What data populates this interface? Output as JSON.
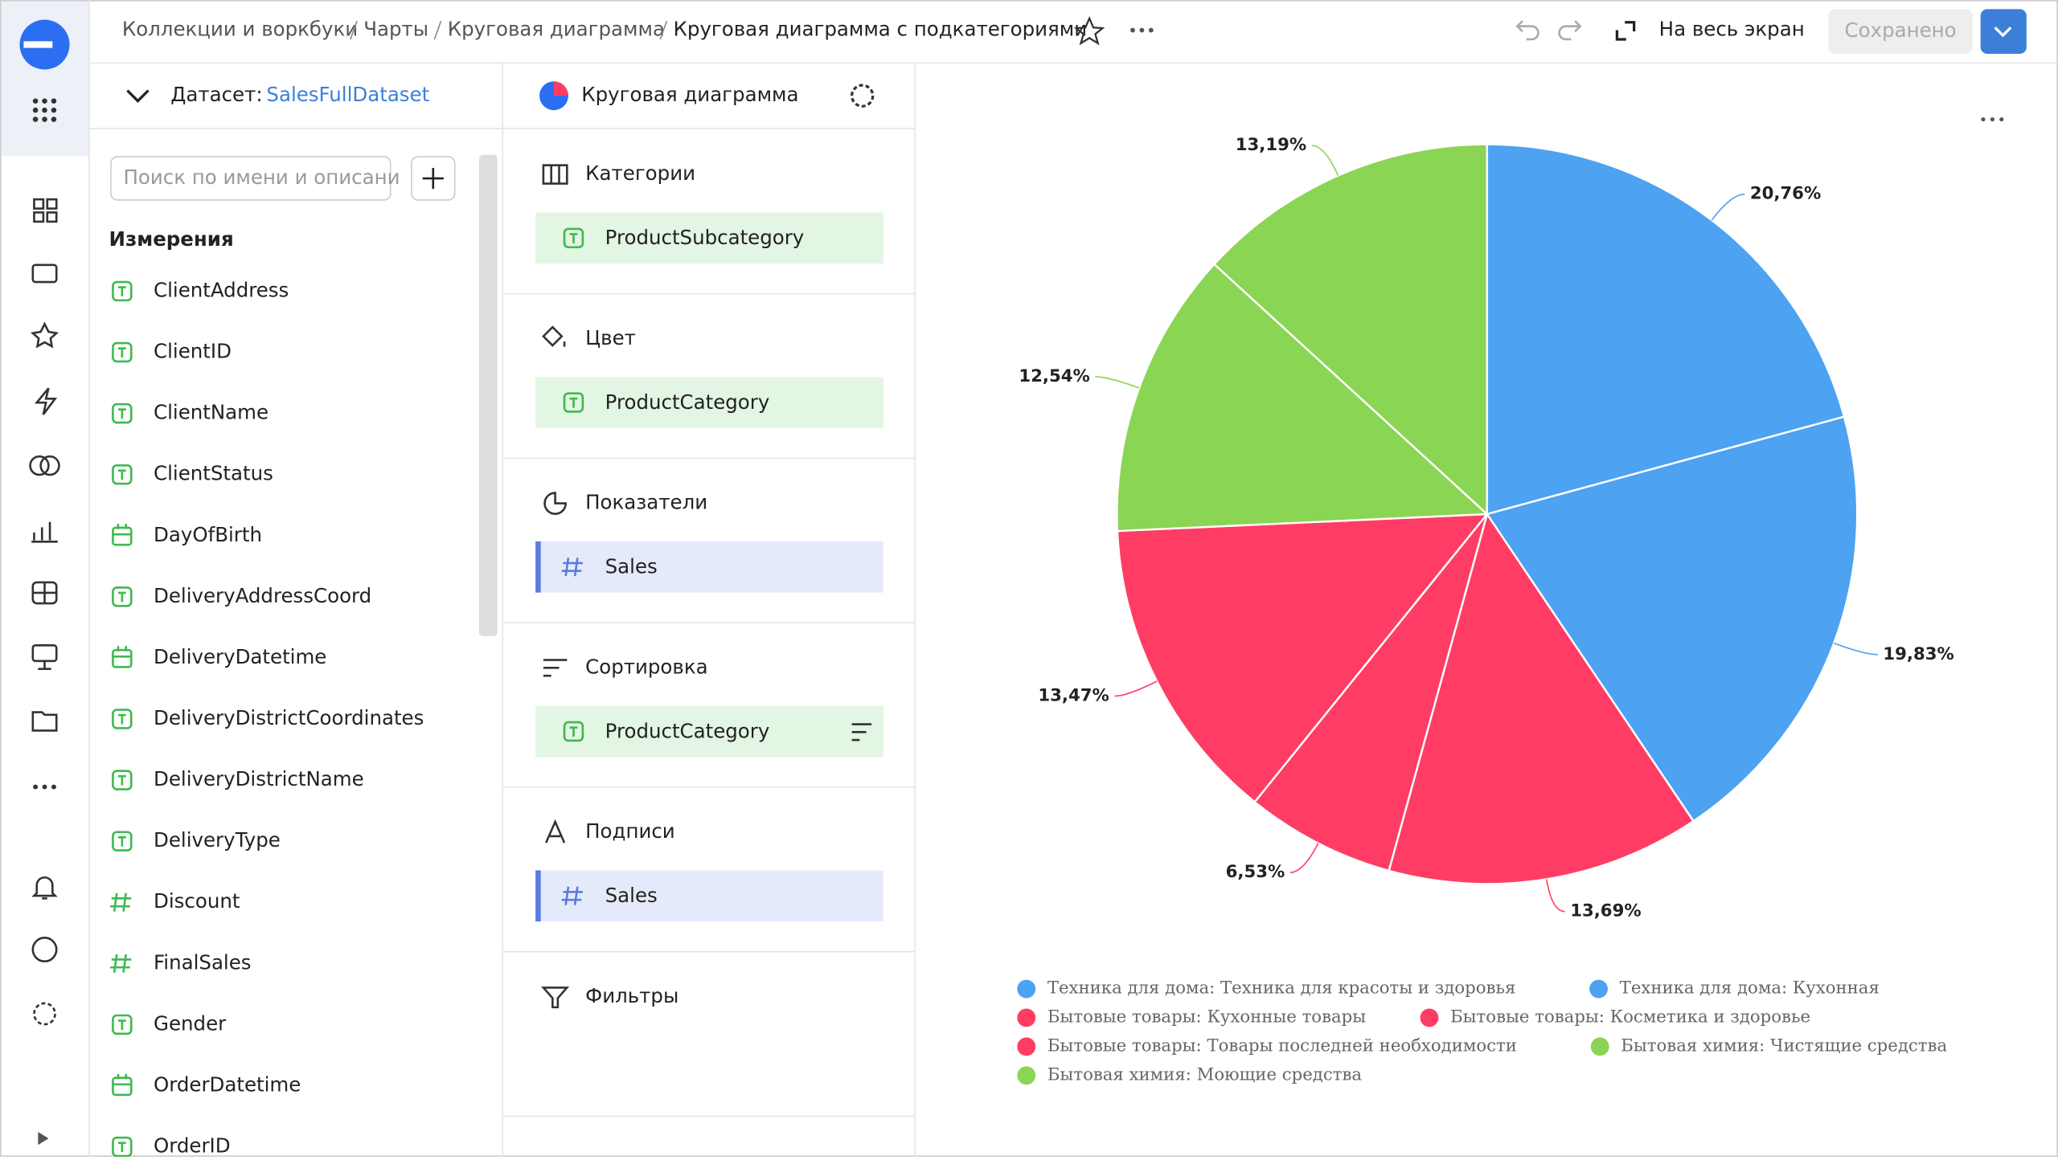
{
  "header": {
    "breadcrumbs": [
      "Коллекции и воркбуки",
      "Чарты",
      "Круговая диаграмма"
    ],
    "title": "Круговая диаграмма с подкатегориями",
    "fullscreen": "На весь экран",
    "save": "Сохранено"
  },
  "dataset": {
    "label": "Датасет:",
    "name": "SalesFullDataset",
    "search": "Поиск по имени и описани",
    "section": "Измерения",
    "fields": [
      {
        "name": "ClientAddress",
        "kind": "text"
      },
      {
        "name": "ClientID",
        "kind": "text"
      },
      {
        "name": "ClientName",
        "kind": "text"
      },
      {
        "name": "ClientStatus",
        "kind": "text"
      },
      {
        "name": "DayOfBirth",
        "kind": "date"
      },
      {
        "name": "DeliveryAddressCoord",
        "kind": "text"
      },
      {
        "name": "DeliveryDatetime",
        "kind": "date"
      },
      {
        "name": "DeliveryDistrictCoordinates",
        "kind": "text"
      },
      {
        "name": "DeliveryDistrictName",
        "kind": "text"
      },
      {
        "name": "DeliveryType",
        "kind": "text"
      },
      {
        "name": "Discount",
        "kind": "number"
      },
      {
        "name": "FinalSales",
        "kind": "number"
      },
      {
        "name": "Gender",
        "kind": "text"
      },
      {
        "name": "OrderDatetime",
        "kind": "date"
      },
      {
        "name": "OrderID",
        "kind": "text"
      }
    ]
  },
  "wizard": {
    "title": "Круговая диаграмма",
    "sections": [
      {
        "title": "Категории",
        "field": {
          "name": "ProductSubcategory",
          "kind": "text"
        }
      },
      {
        "title": "Цвет",
        "field": {
          "name": "ProductCategory",
          "kind": "text"
        }
      },
      {
        "title": "Показатели",
        "field": {
          "name": "Sales",
          "kind": "number"
        }
      },
      {
        "title": "Сортировка",
        "field": {
          "name": "ProductCategory",
          "kind": "text"
        }
      },
      {
        "title": "Подписи",
        "field": {
          "name": "Sales",
          "kind": "number"
        }
      },
      {
        "title": "Фильтры"
      }
    ]
  },
  "chart_data": {
    "type": "pie",
    "categories": [
      "Техника для дома: Техника для красоты и здоровья",
      "Техника для дома: Кухонная",
      "Бытовые товары: Кухонные товары",
      "Бытовые товары: Косметика и здоровье",
      "Бытовые товары: Товары последней необходимости",
      "Бытовая химия: Чистящие средства",
      "Бытовая химия: Моющие средства"
    ],
    "values": [
      20.76,
      19.83,
      13.69,
      6.53,
      13.47,
      12.54,
      13.19
    ],
    "value_labels": [
      "20,76%",
      "19,83%",
      "13,69%",
      "6,53%",
      "13,47%",
      "12,54%",
      "13,19%"
    ],
    "colors": [
      "#4da2f1",
      "#4da2f1",
      "#ff3d64",
      "#ff3d64",
      "#ff3d64",
      "#8ad554",
      "#8ad554"
    ],
    "legend": "bottom"
  }
}
